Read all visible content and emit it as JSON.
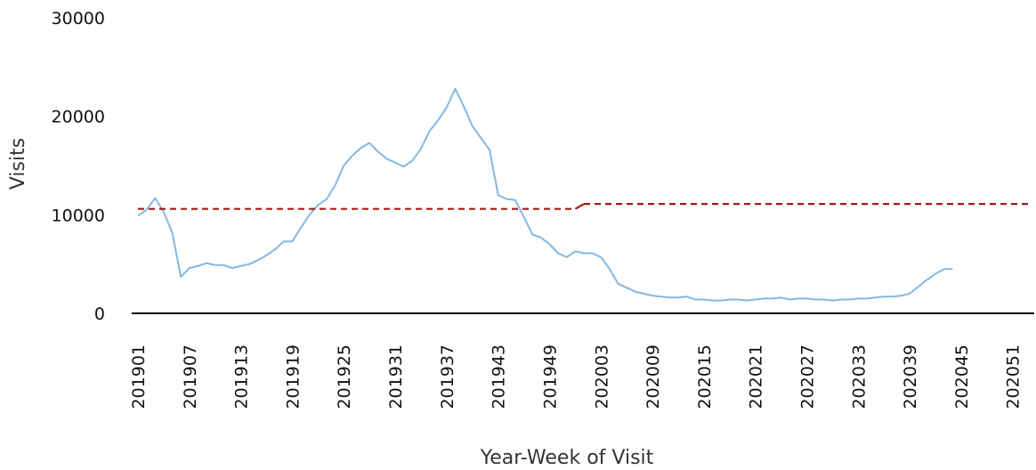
{
  "chart_data": {
    "type": "line",
    "title": "",
    "xlabel": "Year-Week of Visit",
    "ylabel": "Visits",
    "ylim": [
      0,
      30000
    ],
    "yticks": [
      "0",
      "10000",
      "20000",
      "30000"
    ],
    "grid": false,
    "legend": "none",
    "xticks": [
      "201901",
      "201907",
      "201913",
      "201919",
      "201925",
      "201931",
      "201937",
      "201943",
      "201949",
      "202003",
      "202009",
      "202015",
      "202021",
      "202027",
      "202033",
      "202039",
      "202045",
      "202051"
    ],
    "x": [
      "201901",
      "201902",
      "201903",
      "201904",
      "201905",
      "201906",
      "201907",
      "201908",
      "201909",
      "201910",
      "201911",
      "201912",
      "201913",
      "201914",
      "201915",
      "201916",
      "201917",
      "201918",
      "201919",
      "201920",
      "201921",
      "201922",
      "201923",
      "201924",
      "201925",
      "201926",
      "201927",
      "201928",
      "201929",
      "201930",
      "201931",
      "201932",
      "201933",
      "201934",
      "201935",
      "201936",
      "201937",
      "201938",
      "201939",
      "201940",
      "201941",
      "201942",
      "201943",
      "201944",
      "201945",
      "201946",
      "201947",
      "201948",
      "201949",
      "201950",
      "201951",
      "201952",
      "202001",
      "202002",
      "202003",
      "202004",
      "202005",
      "202006",
      "202007",
      "202008",
      "202009",
      "202010",
      "202011",
      "202012",
      "202013",
      "202014",
      "202015",
      "202016",
      "202017",
      "202018",
      "202019",
      "202020",
      "202021",
      "202022",
      "202023",
      "202024",
      "202025",
      "202026",
      "202027",
      "202028",
      "202029",
      "202030",
      "202031",
      "202032",
      "202033",
      "202034",
      "202035",
      "202036",
      "202037",
      "202038",
      "202039",
      "202040",
      "202041",
      "202042",
      "202043",
      "202044",
      "202045",
      "202046",
      "202047",
      "202048",
      "202049",
      "202050",
      "202051",
      "202052",
      "202053"
    ],
    "series": [
      {
        "style": "solid",
        "color": "#85b8e0",
        "values": [
          9900,
          10500,
          11700,
          10300,
          8200,
          3700,
          4600,
          4800,
          5100,
          4900,
          4900,
          4600,
          4800,
          5000,
          5400,
          5900,
          6500,
          7300,
          7300,
          8700,
          10000,
          11000,
          11600,
          13000,
          15000,
          16000,
          16800,
          17300,
          16400,
          15700,
          15300,
          14900,
          15500,
          16700,
          18500,
          19600,
          20900,
          22800,
          21000,
          19000,
          17800,
          16600,
          12000,
          11600,
          11500,
          9800,
          8000,
          7700,
          7000,
          6100,
          5700,
          6300,
          6100,
          6100,
          5700,
          4500,
          3000,
          2600,
          2200,
          2000,
          1800,
          1700,
          1600,
          1600,
          1700,
          1400,
          1400,
          1300,
          1300,
          1400,
          1400,
          1300,
          1400,
          1500,
          1500,
          1600,
          1400,
          1500,
          1500,
          1400,
          1400,
          1300,
          1400,
          1400,
          1500,
          1500,
          1600,
          1700,
          1700,
          1800,
          2000,
          2700,
          3400,
          4000,
          4500,
          4500,
          null,
          null,
          null,
          null,
          null,
          null,
          null,
          null,
          null
        ]
      },
      {
        "style": "dashed",
        "color": "#a01c12",
        "segments": [
          {
            "from": "201901",
            "to": "201952",
            "value": 10600
          },
          {
            "from": "202001",
            "to": "202053",
            "value": 11100
          }
        ]
      }
    ]
  }
}
